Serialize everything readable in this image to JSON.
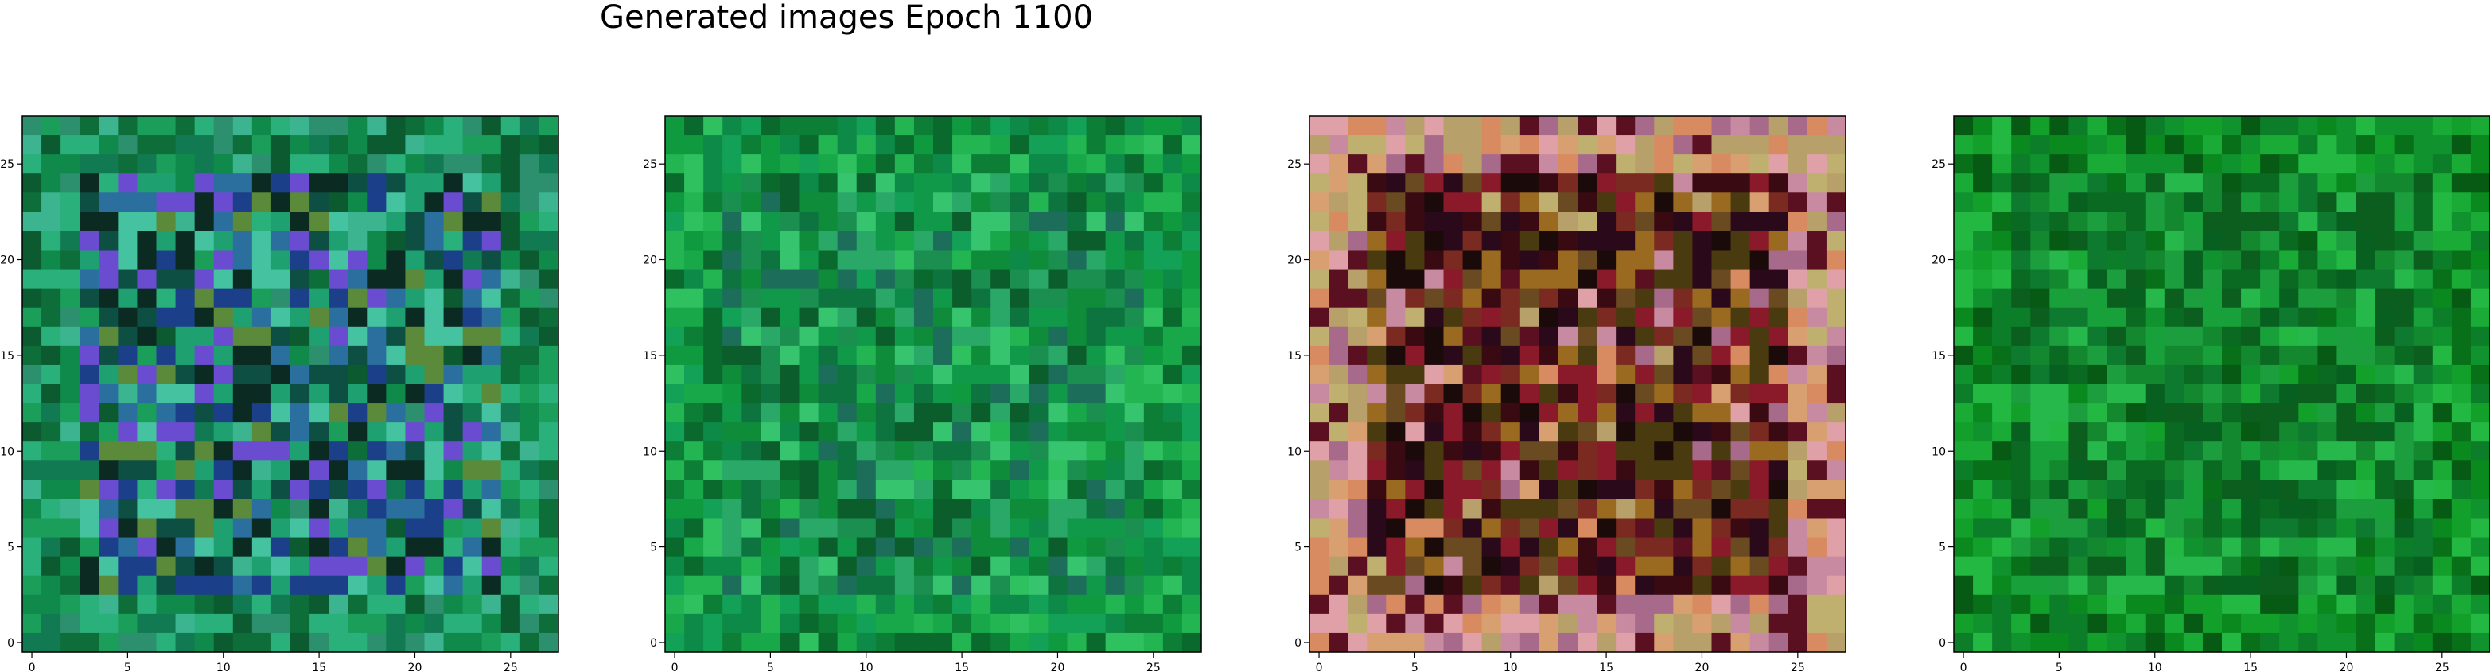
{
  "figure": {
    "title": "Generated images Epoch 1100"
  },
  "chart_data": [
    {
      "type": "heatmap",
      "title": "",
      "xlabel": "",
      "ylabel": "",
      "grid_size": [
        28,
        28
      ],
      "xlim": [
        -0.5,
        27.5
      ],
      "ylim": [
        27.5,
        -0.5
      ],
      "x_ticks": [
        0,
        5,
        10,
        15,
        20,
        25
      ],
      "y_ticks": [
        0,
        5,
        10,
        15,
        20,
        25
      ],
      "style": "green-teal border with purple/blue right edge",
      "palette": [
        "#0f8a4a",
        "#1b9e5a",
        "#0d6e3a",
        "#2ab07a",
        "#127a52",
        "#2c8f6e",
        "#3bb48f",
        "#0b5a30",
        "#1fa070",
        "#45c2a0",
        "#2a6f9e",
        "#6a4cd0",
        "#1c3f8a",
        "#0a2a22",
        "#5a8a3a",
        "#0e4f44"
      ]
    },
    {
      "type": "heatmap",
      "title": "",
      "xlabel": "",
      "ylabel": "",
      "grid_size": [
        28,
        28
      ],
      "xlim": [
        -0.5,
        27.5
      ],
      "ylim": [
        27.5,
        -0.5
      ],
      "x_ticks": [
        0,
        5,
        10,
        15,
        20,
        25
      ],
      "y_ticks": [
        0,
        5,
        10,
        15,
        20,
        25
      ],
      "style": "mostly green",
      "palette": [
        "#0f9a3f",
        "#18a84a",
        "#0c7e35",
        "#22b552",
        "#0e8a48",
        "#2fc060",
        "#0a6a2e",
        "#13a057",
        "#1a8f50",
        "#0b5e2c",
        "#2aa868",
        "#11994a",
        "#0d7440",
        "#37c46e",
        "#1c6e5a",
        "#0e8c3a"
      ]
    },
    {
      "type": "heatmap",
      "title": "",
      "xlabel": "",
      "ylabel": "",
      "grid_size": [
        28,
        28
      ],
      "xlim": [
        -0.5,
        27.5
      ],
      "ylim": [
        27.5,
        -0.5
      ],
      "x_ticks": [
        0,
        5,
        10,
        15,
        20,
        25
      ],
      "y_ticks": [
        0,
        5,
        10,
        15,
        20,
        25
      ],
      "style": "pink/orange/tan border with dark maroon center",
      "palette": [
        "#c78aa0",
        "#d8a070",
        "#b8a06a",
        "#e0a0a8",
        "#c0b070",
        "#d88a60",
        "#a86a8a",
        "#5a1020",
        "#3a0a12",
        "#7a2a20",
        "#6a4a20",
        "#2a0a1a",
        "#8a1a2a",
        "#4a3a10",
        "#9a6a20",
        "#1a0a0a"
      ]
    },
    {
      "type": "heatmap",
      "title": "",
      "xlabel": "",
      "ylabel": "",
      "grid_size": [
        28,
        28
      ],
      "xlim": [
        -0.5,
        27.5
      ],
      "ylim": [
        27.5,
        -0.5
      ],
      "x_ticks": [
        0,
        5,
        10,
        15,
        20,
        25
      ],
      "y_ticks": [
        0,
        5,
        10,
        15,
        20,
        25
      ],
      "style": "mostly green, darker",
      "palette": [
        "#0a8a1e",
        "#12a02a",
        "#087018",
        "#1aab36",
        "#0c7e2a",
        "#22b842",
        "#065a14",
        "#10932e",
        "#0a6a22",
        "#18a03a",
        "#0e7a30",
        "#27b84c",
        "#086020",
        "#14882e",
        "#0b5e1e",
        "#1c9e3e"
      ]
    }
  ]
}
